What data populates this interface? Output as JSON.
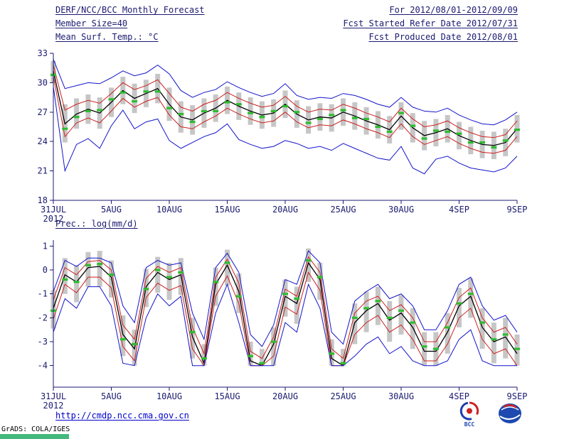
{
  "header": {
    "left": [
      "DERF/NCC/BCC Monthly Forecast",
      "Member Size=40",
      "Mean Surf. Temp.: °C"
    ],
    "right": [
      "For 2012/08/01-2012/09/09",
      "Fcst Started Refer Date 2012/07/31",
      "Fcst Produced Date 2012/08/01"
    ]
  },
  "footer": {
    "url": "http://cmdp.ncc.cma.gov.cn",
    "credit": "GrADS: COLA/IGES",
    "bcc_label": "BCC"
  },
  "colors": {
    "background": "#ffffff",
    "axis": "#1a1a70",
    "text": "#1a1a70",
    "blue": "#1414cc",
    "red": "#cc2020",
    "black": "#000000",
    "green": "#2ebc2e",
    "bar": "#c6c6c6",
    "url_blue": "#0000cc",
    "footer_bar_green": "#45b97c"
  },
  "chart_data": [
    {
      "type": "line",
      "name": "temperature",
      "title": "Mean Surf. Temp.: °C",
      "xlabel": "",
      "ylabel": "°C",
      "ylim": [
        18,
        33
      ],
      "yticks": [
        18,
        21,
        24,
        27,
        30,
        33
      ],
      "xticks": {
        "positions": [
          0,
          5,
          10,
          15,
          20,
          25,
          30,
          35,
          40
        ],
        "labels": [
          "31JUL",
          "5AUG",
          "10AUG",
          "15AUG",
          "20AUG",
          "25AUG",
          "30AUG",
          "4SEP",
          "9SEP"
        ]
      },
      "year_label": "2012",
      "grid": false,
      "legend": "none",
      "x": [
        0,
        1,
        2,
        3,
        4,
        5,
        6,
        7,
        8,
        9,
        10,
        11,
        12,
        13,
        14,
        15,
        16,
        17,
        18,
        19,
        20,
        21,
        22,
        23,
        24,
        25,
        26,
        27,
        28,
        29,
        30,
        31,
        32,
        33,
        34,
        35,
        36,
        37,
        38,
        39,
        40
      ],
      "series": [
        {
          "name": "ensemble-max",
          "color": "blue",
          "values": [
            32.4,
            29.4,
            29.7,
            30.0,
            29.9,
            30.5,
            31.2,
            30.7,
            31.0,
            31.8,
            30.9,
            29.2,
            28.5,
            29.0,
            29.3,
            30.1,
            29.5,
            29.0,
            28.6,
            28.9,
            29.9,
            28.7,
            28.3,
            28.5,
            28.4,
            28.9,
            28.7,
            28.3,
            27.8,
            27.5,
            28.5,
            27.5,
            27.1,
            27.0,
            27.4,
            26.7,
            26.2,
            25.8,
            25.7,
            26.2,
            27.0
          ]
        },
        {
          "name": "upper-quartile",
          "color": "red",
          "values": [
            31.8,
            27.2,
            27.8,
            28.2,
            27.9,
            28.9,
            30.0,
            29.3,
            29.7,
            30.3,
            28.9,
            27.5,
            27.1,
            27.8,
            28.2,
            29.0,
            28.4,
            27.9,
            27.5,
            27.7,
            28.6,
            27.6,
            27.0,
            27.3,
            27.2,
            27.8,
            27.4,
            26.9,
            26.5,
            26.0,
            27.4,
            26.3,
            25.5,
            25.7,
            26.1,
            25.4,
            24.9,
            24.5,
            24.4,
            24.7,
            26.1
          ]
        },
        {
          "name": "ensemble-mean",
          "color": "black",
          "values": [
            31.2,
            25.8,
            26.8,
            27.3,
            26.9,
            28.0,
            29.2,
            28.4,
            28.9,
            29.4,
            27.8,
            26.5,
            26.2,
            26.9,
            27.4,
            28.2,
            27.6,
            27.1,
            26.7,
            26.9,
            27.8,
            26.8,
            26.2,
            26.5,
            26.4,
            27.0,
            26.6,
            26.1,
            25.7,
            25.2,
            26.6,
            25.4,
            24.6,
            24.9,
            25.3,
            24.6,
            24.1,
            23.7,
            23.6,
            23.9,
            25.3
          ]
        },
        {
          "name": "lower-quartile",
          "color": "red",
          "values": [
            30.6,
            24.5,
            25.9,
            26.4,
            25.9,
            27.1,
            28.4,
            27.5,
            28.1,
            28.5,
            26.7,
            25.5,
            25.3,
            26.0,
            26.6,
            27.4,
            26.8,
            26.3,
            25.9,
            26.1,
            27.0,
            26.0,
            25.4,
            25.7,
            25.6,
            26.2,
            25.8,
            25.3,
            24.9,
            24.4,
            25.8,
            24.5,
            23.7,
            24.1,
            24.5,
            23.8,
            23.3,
            22.9,
            22.8,
            23.1,
            24.5
          ]
        },
        {
          "name": "ensemble-min",
          "color": "blue",
          "values": [
            29.6,
            21.0,
            23.7,
            24.3,
            23.3,
            25.6,
            27.2,
            25.3,
            26.0,
            26.3,
            24.1,
            23.3,
            23.9,
            24.5,
            24.9,
            25.8,
            24.2,
            23.7,
            23.3,
            23.5,
            24.1,
            23.8,
            23.3,
            23.5,
            23.1,
            23.8,
            23.3,
            22.8,
            22.3,
            22.1,
            23.5,
            21.3,
            20.7,
            22.2,
            22.5,
            21.8,
            21.3,
            21.1,
            20.9,
            21.3,
            22.5
          ]
        }
      ],
      "spread_bars": {
        "top": [
          32.2,
          27.8,
          28.4,
          28.8,
          28.5,
          29.5,
          30.6,
          29.9,
          30.3,
          30.9,
          29.5,
          28.1,
          27.7,
          28.4,
          28.8,
          29.6,
          29.0,
          28.5,
          28.1,
          28.3,
          29.2,
          28.2,
          27.6,
          27.9,
          27.8,
          28.4,
          28.0,
          27.5,
          27.1,
          26.6,
          28.0,
          26.9,
          26.1,
          26.3,
          26.7,
          26.0,
          25.5,
          25.1,
          25.0,
          25.3,
          26.7
        ],
        "bottom": [
          30.0,
          23.9,
          25.3,
          25.8,
          25.3,
          26.5,
          27.8,
          26.9,
          27.5,
          27.9,
          26.1,
          24.9,
          24.7,
          25.4,
          26.0,
          26.8,
          26.2,
          25.7,
          25.3,
          25.5,
          26.4,
          25.4,
          24.8,
          25.1,
          25.0,
          25.6,
          25.2,
          24.7,
          24.3,
          23.8,
          25.2,
          23.9,
          23.1,
          23.5,
          23.9,
          23.2,
          22.7,
          22.3,
          22.2,
          22.5,
          23.9
        ]
      },
      "median_markers": [
        30.8,
        25.3,
        26.5,
        27.1,
        27.2,
        28.3,
        29.0,
        28.1,
        29.1,
        29.1,
        27.4,
        26.8,
        26.0,
        27.1,
        27.1,
        28.0,
        27.8,
        26.9,
        26.5,
        27.1,
        27.6,
        27.0,
        25.9,
        26.3,
        26.7,
        27.2,
        26.4,
        26.3,
        25.5,
        25.0,
        26.9,
        25.6,
        24.3,
        25.1,
        25.0,
        24.8,
        23.9,
        23.9,
        23.4,
        24.1,
        25.2
      ]
    },
    {
      "type": "line",
      "name": "precipitation",
      "title": "Prec.: log(mm/d)",
      "xlabel": "",
      "ylabel": "log(mm/d)",
      "ylim": [
        -4.9,
        1.25
      ],
      "yticks": [
        -4,
        -3,
        -2,
        -1,
        0,
        1
      ],
      "xticks": {
        "positions": [
          0,
          5,
          10,
          15,
          20,
          25,
          30,
          35,
          40
        ],
        "labels": [
          "31JUL",
          "5AUG",
          "10AUG",
          "15AUG",
          "20AUG",
          "25AUG",
          "30AUG",
          "4SEP",
          "9SEP"
        ]
      },
      "year_label": "2012",
      "grid": false,
      "legend": "none",
      "x": [
        0,
        1,
        2,
        3,
        4,
        5,
        6,
        7,
        8,
        9,
        10,
        11,
        12,
        13,
        14,
        15,
        16,
        17,
        18,
        19,
        20,
        21,
        22,
        23,
        24,
        25,
        26,
        27,
        28,
        29,
        30,
        31,
        32,
        33,
        34,
        35,
        36,
        37,
        38,
        39,
        40
      ],
      "series": [
        {
          "name": "ensemble-max",
          "color": "blue",
          "values": [
            -0.9,
            0.4,
            0.15,
            0.5,
            0.5,
            0.3,
            -1.5,
            -2.2,
            0.1,
            0.4,
            0.2,
            0.3,
            -1.8,
            -2.9,
            0.1,
            0.7,
            -0.1,
            -2.7,
            -3.2,
            -2.3,
            -0.4,
            -0.6,
            0.8,
            0.3,
            -2.6,
            -3.1,
            -1.3,
            -0.9,
            -0.6,
            -1.2,
            -1.0,
            -1.5,
            -2.5,
            -2.5,
            -1.7,
            -0.6,
            -0.3,
            -1.5,
            -2.1,
            -1.9,
            -2.6
          ]
        },
        {
          "name": "upper-quartile",
          "color": "red",
          "values": [
            -1.25,
            0.1,
            -0.2,
            0.35,
            0.4,
            0.0,
            -2.3,
            -2.9,
            -0.35,
            0.15,
            -0.1,
            0.1,
            -2.4,
            -3.5,
            -0.3,
            0.45,
            -0.55,
            -3.4,
            -3.7,
            -2.8,
            -0.8,
            -1.1,
            0.55,
            -0.1,
            -3.3,
            -3.7,
            -1.8,
            -1.3,
            -1.1,
            -1.7,
            -1.45,
            -2.0,
            -3.0,
            -3.0,
            -2.2,
            -1.15,
            -0.75,
            -2.0,
            -2.6,
            -2.4,
            -3.1
          ]
        },
        {
          "name": "ensemble-mean",
          "color": "black",
          "values": [
            -1.6,
            -0.2,
            -0.5,
            0.1,
            0.15,
            -0.3,
            -2.7,
            -3.3,
            -0.7,
            -0.1,
            -0.4,
            -0.2,
            -2.8,
            -3.9,
            -0.6,
            0.2,
            -0.9,
            -3.8,
            -4.0,
            -3.1,
            -1.1,
            -1.4,
            0.3,
            -0.4,
            -3.7,
            -4.0,
            -2.2,
            -1.7,
            -1.4,
            -2.1,
            -1.8,
            -2.4,
            -3.4,
            -3.4,
            -2.6,
            -1.5,
            -1.1,
            -2.4,
            -3.0,
            -2.8,
            -3.5
          ]
        },
        {
          "name": "lower-quartile",
          "color": "red",
          "values": [
            -2.05,
            -0.6,
            -0.95,
            -0.3,
            -0.3,
            -0.75,
            -3.2,
            -3.8,
            -1.15,
            -0.55,
            -0.85,
            -0.65,
            -3.3,
            -4.0,
            -1.1,
            -0.25,
            -1.4,
            -4.0,
            -4.0,
            -3.6,
            -1.55,
            -1.85,
            -0.1,
            -0.85,
            -4.0,
            -4.0,
            -2.7,
            -2.2,
            -1.9,
            -2.6,
            -2.3,
            -2.9,
            -3.8,
            -3.8,
            -3.1,
            -2.0,
            -1.6,
            -2.9,
            -3.5,
            -3.3,
            -4.0
          ]
        },
        {
          "name": "ensemble-min",
          "color": "blue",
          "values": [
            -2.6,
            -1.2,
            -1.6,
            -0.7,
            -0.7,
            -1.5,
            -3.9,
            -4.0,
            -2.0,
            -1.0,
            -1.5,
            -1.1,
            -4.0,
            -4.0,
            -1.8,
            -0.6,
            -2.2,
            -4.0,
            -4.0,
            -4.0,
            -2.2,
            -2.6,
            -0.6,
            -1.6,
            -4.0,
            -4.0,
            -3.6,
            -3.1,
            -2.8,
            -3.5,
            -3.2,
            -3.8,
            -4.0,
            -4.0,
            -3.8,
            -2.9,
            -2.5,
            -3.8,
            -4.0,
            -4.0,
            -4.0
          ]
        }
      ],
      "spread_bars": {
        "top": [
          -0.85,
          0.5,
          0.2,
          0.75,
          0.8,
          0.4,
          -1.9,
          -2.5,
          0.05,
          0.55,
          0.3,
          0.5,
          -2.0,
          -3.1,
          0.1,
          0.85,
          -0.15,
          -3.0,
          -3.3,
          -2.4,
          -0.4,
          -0.7,
          0.9,
          0.3,
          -2.9,
          -3.3,
          -1.4,
          -0.9,
          -0.7,
          -1.3,
          -1.05,
          -1.6,
          -2.6,
          -2.6,
          -1.8,
          -0.75,
          -0.35,
          -1.6,
          -2.2,
          -2.0,
          -2.7
        ],
        "bottom": [
          -2.45,
          -1.0,
          -1.35,
          -0.7,
          -0.7,
          -1.15,
          -3.6,
          -4.0,
          -1.55,
          -0.95,
          -1.25,
          -1.05,
          -3.7,
          -4.0,
          -1.5,
          -0.65,
          -1.8,
          -4.0,
          -4.0,
          -4.0,
          -1.95,
          -2.25,
          -0.5,
          -1.25,
          -4.0,
          -4.0,
          -3.1,
          -2.6,
          -2.3,
          -3.0,
          -2.7,
          -3.3,
          -4.0,
          -4.0,
          -3.5,
          -2.4,
          -2.0,
          -3.3,
          -3.9,
          -3.7,
          -4.0
        ]
      },
      "median_markers": [
        -1.7,
        -0.4,
        -0.5,
        0.2,
        0.25,
        -0.2,
        -2.9,
        -3.1,
        -0.8,
        0.0,
        -0.3,
        -0.1,
        -2.6,
        -3.7,
        -0.5,
        0.3,
        -1.1,
        -3.6,
        -3.9,
        -3.0,
        -1.0,
        -1.2,
        0.4,
        -0.3,
        -3.5,
        -3.9,
        -2.0,
        -1.6,
        -1.3,
        -2.0,
        -1.7,
        -2.2,
        -3.2,
        -3.3,
        -2.4,
        -1.4,
        -1.0,
        -2.2,
        -2.9,
        -2.7,
        -3.3
      ]
    }
  ]
}
